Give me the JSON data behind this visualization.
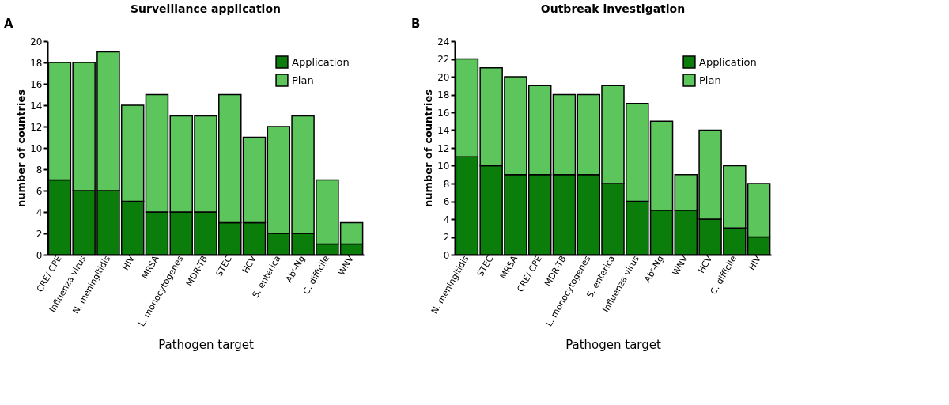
{
  "chart_data": [
    {
      "type": "bar",
      "title": "Surveillance application",
      "annotations": [
        "A"
      ],
      "xlabel": "Pathogen target",
      "ylabel": "number of countries",
      "stacked": true,
      "legend": "top right",
      "grid": false,
      "categories": [
        "CRE/ CPE",
        "Influenza virus",
        "N. meningitidis",
        "HIV",
        "MRSA",
        "L. monocytogenes",
        "MDR-TB",
        "STEC",
        "HCV",
        "S. enterica",
        "Abʳ-Ng",
        "C. difficile",
        "WNV"
      ],
      "series": [
        {
          "name": "Application",
          "color": "#0b7d0b",
          "values": [
            7,
            6,
            6,
            5,
            4,
            4,
            4,
            3,
            3,
            2,
            2,
            1,
            1
          ]
        },
        {
          "name": "Plan",
          "color": "#5cc65c",
          "values": [
            11,
            12,
            13,
            9,
            11,
            9,
            9,
            12,
            8,
            10,
            11,
            6,
            2
          ]
        }
      ],
      "ylim": [
        0,
        20
      ],
      "yticks": [
        0,
        2,
        4,
        6,
        8,
        10,
        12,
        14,
        16,
        18,
        20
      ]
    },
    {
      "type": "bar",
      "title": "Outbreak investigation",
      "annotations": [
        "B"
      ],
      "xlabel": "Pathogen target",
      "ylabel": "number of countries",
      "stacked": true,
      "legend": "top right",
      "grid": false,
      "categories": [
        "N. meningitidis",
        "STEC",
        "MRSA",
        "CRE/ CPE",
        "MDR-TB",
        "L. monocytogenes",
        "S. enterica",
        "Influenza virus",
        "Abʳ-Ng",
        "WNV",
        "HCV",
        "C. difficile",
        "HIV"
      ],
      "series": [
        {
          "name": "Application",
          "color": "#0b7d0b",
          "values": [
            11,
            10,
            9,
            9,
            9,
            9,
            8,
            6,
            5,
            5,
            4,
            3,
            2
          ]
        },
        {
          "name": "Plan",
          "color": "#5cc65c",
          "values": [
            11,
            11,
            11,
            10,
            9,
            9,
            11,
            11,
            10,
            4,
            10,
            7,
            6
          ]
        }
      ],
      "ylim": [
        0,
        24
      ],
      "yticks": [
        0,
        2,
        4,
        6,
        8,
        10,
        12,
        14,
        16,
        18,
        20,
        22,
        24
      ]
    }
  ]
}
